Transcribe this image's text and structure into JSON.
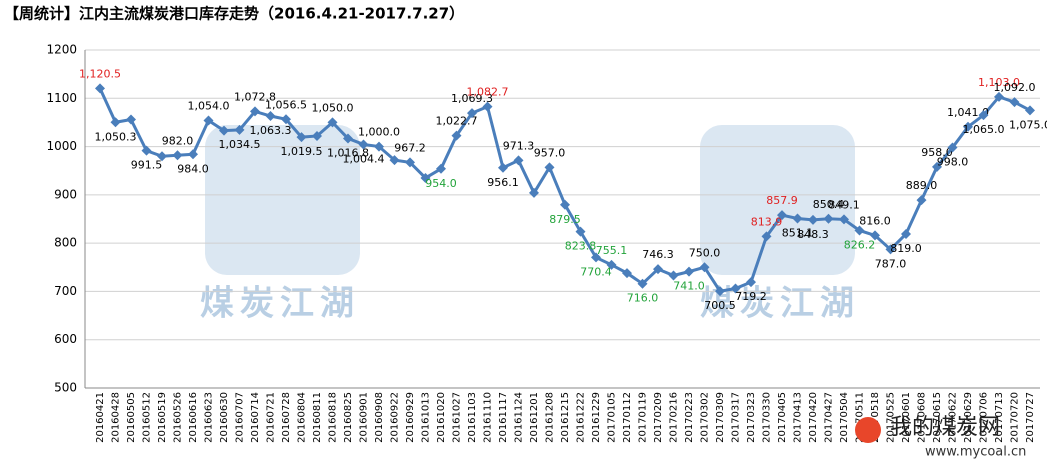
{
  "chart_data": {
    "type": "line",
    "title": "【周统计】江内主流煤炭港口库存走势（2016.4.21-2017.7.27）",
    "watermark": "煤炭江湖",
    "site_name": "我的煤炭网",
    "site_url": "www.mycoal.cn",
    "categories": [
      "20160421",
      "20160428",
      "20160505",
      "20160512",
      "20160519",
      "20160526",
      "20160616",
      "20160623",
      "20160630",
      "20160707",
      "20160714",
      "20160721",
      "20160728",
      "20160804",
      "20160811",
      "20160818",
      "20160825",
      "20160901",
      "20160908",
      "20160922",
      "20160929",
      "20161013",
      "20161020",
      "20161027",
      "20161103",
      "20161110",
      "20161117",
      "20161124",
      "20161201",
      "20161208",
      "20161215",
      "20161222",
      "20161229",
      "20170105",
      "20170112",
      "20170119",
      "20170209",
      "20170216",
      "20170223",
      "20170302",
      "20170309",
      "20170317",
      "20170323",
      "20170330",
      "20170405",
      "20170413",
      "20170420",
      "20170427",
      "20170504",
      "20170511",
      "20170518",
      "20170525",
      "20170601",
      "20170608",
      "20170615",
      "20170622",
      "20170629",
      "20170706",
      "20170713",
      "20170720",
      "20170727"
    ],
    "series": [
      {
        "name": "库存",
        "color": "#4a7ebb",
        "values": [
          1120.5,
          1050.3,
          1056,
          991.5,
          980,
          982.0,
          984.0,
          1054.0,
          1033,
          1034.5,
          1072.8,
          1063.3,
          1056.5,
          1019.5,
          1022,
          1050.0,
          1016.8,
          1004.4,
          1000.0,
          972,
          967.2,
          935,
          954.0,
          1022.7,
          1069.3,
          1082.7,
          956.1,
          971.3,
          904,
          957.0,
          879.5,
          823.8,
          770.4,
          755.1,
          738,
          716.0,
          746.3,
          733,
          741.0,
          750.0,
          700.5,
          706,
          719.2,
          813.9,
          857.9,
          851.1,
          848.3,
          850.4,
          849.1,
          826.2,
          816.0,
          787.0,
          819.0,
          889.0,
          958.0,
          998.0,
          1041.0,
          1065.0,
          1103.0,
          1092.0,
          1075.0
        ],
        "value_labels": [
          "1,120.5",
          "1,050.3",
          null,
          "991.5",
          null,
          "982.0",
          "984.0",
          "1,054.0",
          null,
          "1,034.5",
          "1,072.8",
          "1,063.3",
          "1,056.5",
          "1,019.5",
          null,
          "1,050.0",
          "1,016.8",
          "1,004.4",
          "1,000.0",
          null,
          "967.2",
          null,
          "954.0",
          "1,022.7",
          "1,069.3",
          "1,082.7",
          "956.1",
          "971.3",
          null,
          "957.0",
          "879.5",
          "823.8",
          "770.4",
          "755.1",
          null,
          "716.0",
          "746.3",
          null,
          "741.0",
          "750.0",
          "700.5",
          null,
          "719.2",
          "813.9",
          "857.9",
          "851.1",
          "848.3",
          "850.4",
          "849.1",
          "826.2",
          "816.0",
          "787.0",
          "819.0",
          "889.0",
          "958.0",
          "998.0",
          "1,041.0",
          "1,065.0",
          "1,103.0",
          "1,092.0",
          "1,075.0"
        ],
        "value_label_colors": [
          "#e02020",
          null,
          null,
          null,
          null,
          null,
          null,
          null,
          null,
          null,
          null,
          null,
          null,
          null,
          null,
          null,
          null,
          null,
          null,
          null,
          null,
          null,
          "#22a33a",
          null,
          null,
          "#e02020",
          null,
          null,
          null,
          null,
          "#22a33a",
          "#22a33a",
          "#22a33a",
          "#22a33a",
          null,
          "#22a33a",
          null,
          null,
          "#22a33a",
          null,
          null,
          null,
          null,
          "#e02020",
          "#e02020",
          null,
          null,
          null,
          null,
          "#22a33a",
          null,
          null,
          null,
          null,
          null,
          null,
          null,
          null,
          "#e02020",
          null,
          null
        ]
      }
    ],
    "ylim": [
      500,
      1200
    ],
    "yticks": [
      500,
      600,
      700,
      800,
      900,
      1000,
      1100,
      1200
    ],
    "grid": true
  }
}
